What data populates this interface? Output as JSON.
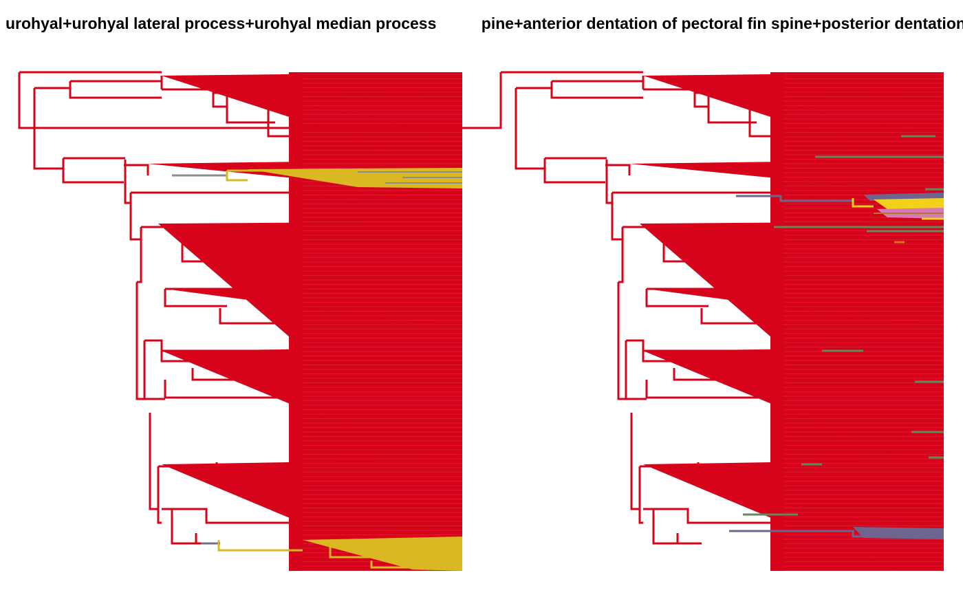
{
  "panels": [
    {
      "title": "urohyal+urohyal lateral process+urohyal median process",
      "colors": {
        "base": "#d7031a",
        "state2": "#d9b824",
        "state3": "#8c8c8c",
        "state4": "#7a6b8e"
      }
    },
    {
      "title": "spine+anterior dentation of pectoral fin spine+posterior dentation",
      "colors": {
        "base": "#d7031a",
        "green": "#5e8a5e",
        "purple": "#6e6490",
        "yellow": "#f2d11b",
        "pink": "#d87bb4",
        "brown": "#b07a2a",
        "orange": "#e0701a"
      }
    }
  ]
}
